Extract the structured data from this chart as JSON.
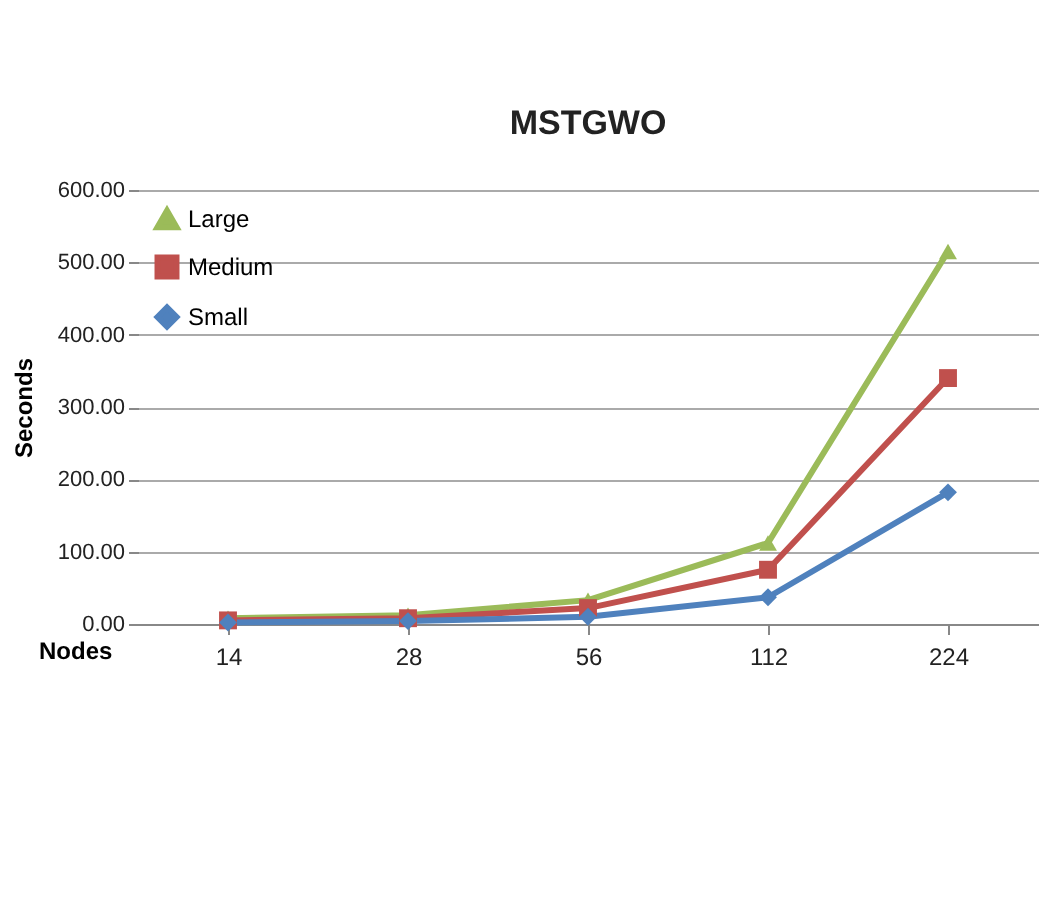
{
  "chart_data": {
    "type": "line",
    "title": "MSTGWO",
    "xlabel": "Nodes",
    "ylabel": "Seconds",
    "categories": [
      "14",
      "28",
      "56",
      "112",
      "224"
    ],
    "series": [
      {
        "name": "Large",
        "color": "#9bbb59",
        "marker": "triangle",
        "values": [
          8,
          12,
          33,
          112,
          515
        ]
      },
      {
        "name": "Medium",
        "color": "#c0504d",
        "marker": "square",
        "values": [
          5,
          8,
          22,
          75,
          340
        ]
      },
      {
        "name": "Small",
        "color": "#4f81bd",
        "marker": "diamond",
        "values": [
          2,
          4,
          10,
          37,
          182
        ]
      }
    ],
    "ylim": [
      0,
      600
    ],
    "yticks": [
      {
        "value": 0,
        "label": "0.00"
      },
      {
        "value": 100,
        "label": "100.00"
      },
      {
        "value": 200,
        "label": "200.00"
      },
      {
        "value": 300,
        "label": "300.00"
      },
      {
        "value": 400,
        "label": "400.00"
      },
      {
        "value": 500,
        "label": "500.00"
      },
      {
        "value": 600,
        "label": "600.00"
      }
    ],
    "grid": "y",
    "legend": "top left",
    "line_style": "solid"
  }
}
